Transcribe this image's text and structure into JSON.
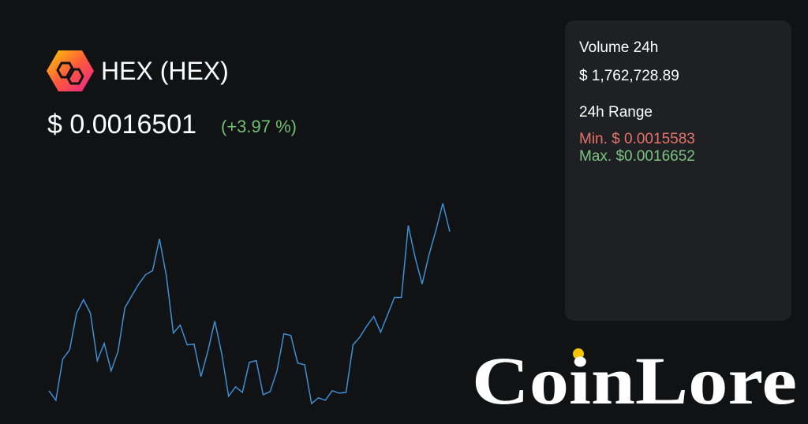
{
  "header": {
    "name": "HEX (HEX)",
    "price": "$ 0.0016501",
    "change": "(+3.97 %)"
  },
  "stats": {
    "volume_label": "Volume 24h",
    "volume": "$ 1,762,728.89",
    "range_label": "24h Range",
    "min": "Min. $ 0.0015583",
    "max": "Max. $0.0016652"
  },
  "logo": {
    "text": "CoinLore"
  },
  "chart_data": {
    "type": "line",
    "color": "#3d8fd6",
    "values": [
      0.0015655,
      0.0015604,
      0.0015823,
      0.0015873,
      0.0016067,
      0.0016139,
      0.0016067,
      0.0015815,
      0.0015907,
      0.001576,
      0.0015865,
      0.0016097,
      0.001616,
      0.0016223,
      0.0016273,
      0.0016294,
      0.0016463,
      0.0016265,
      0.0015962,
      0.0016004,
      0.0015899,
      0.0015903,
      0.001573,
      0.0015865,
      0.0016025,
      0.0015852,
      0.0015625,
      0.0015676,
      0.0015646,
      0.0015806,
      0.0015815,
      0.0015634,
      0.001565,
      0.001576,
      0.0015958,
      0.0015949,
      0.0015802,
      0.0015793,
      0.0015587,
      0.0015617,
      0.0015604,
      0.0015655,
      0.0015642,
      0.0015646,
      0.0015899,
      0.0015941,
      0.0016,
      0.001605,
      0.0015966,
      0.0016059,
      0.0016151,
      0.0016151,
      0.0016534,
      0.0016362,
      0.0016223,
      0.0016378,
      0.0016509,
      0.0016652,
      0.0016501
    ]
  }
}
